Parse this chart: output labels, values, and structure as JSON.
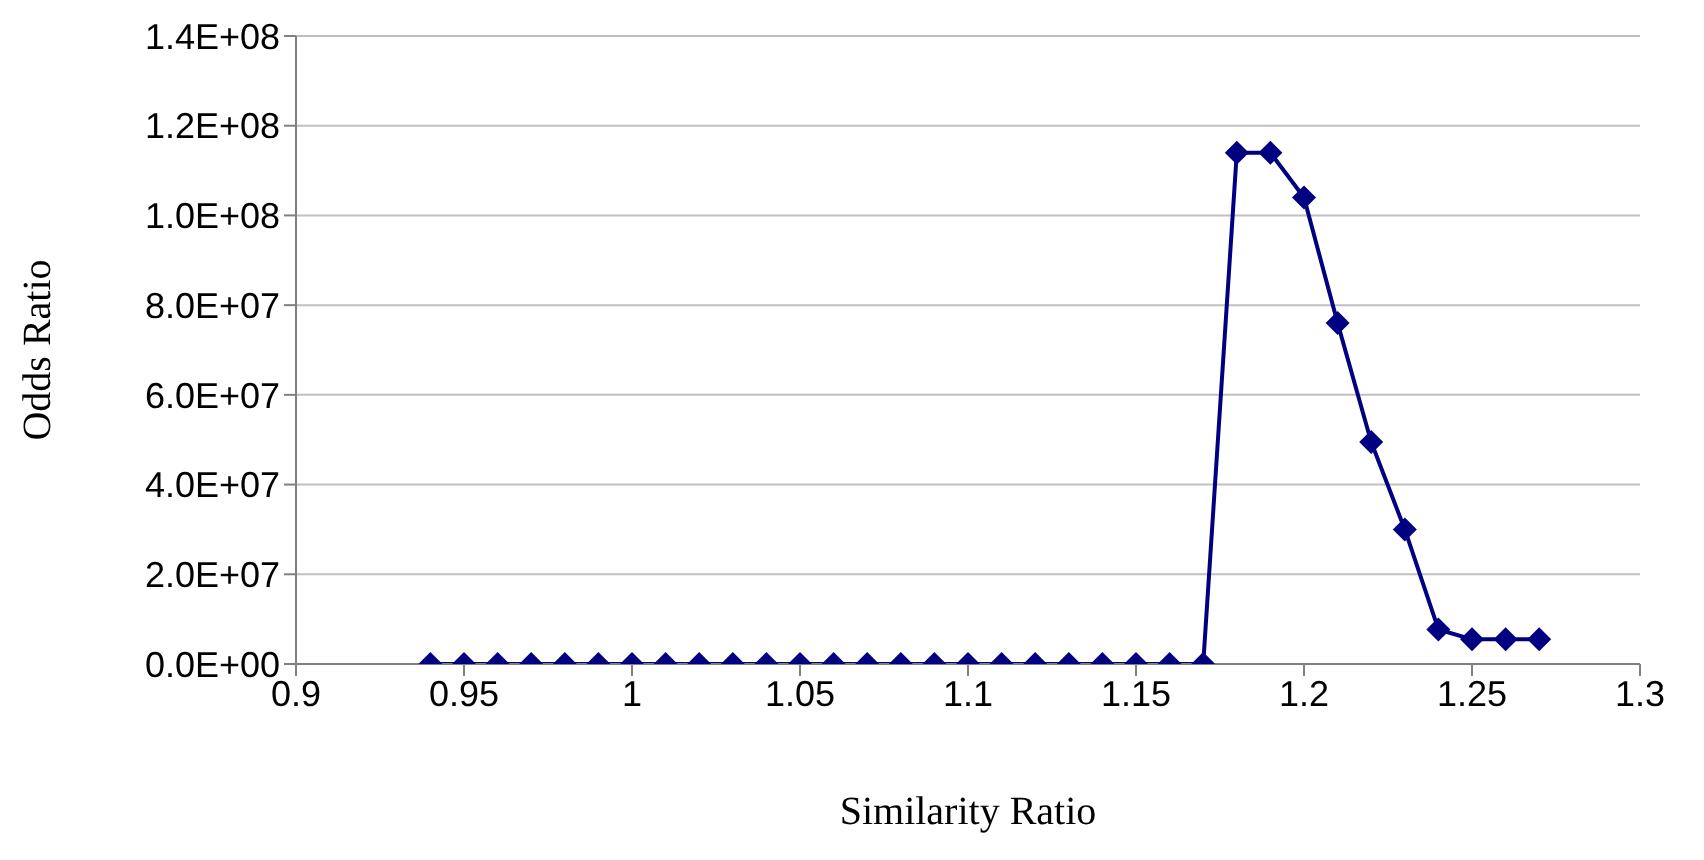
{
  "chart_data": {
    "type": "line",
    "xlabel": "Similarity Ratio",
    "ylabel": "Odds Ratio",
    "x": [
      0.94,
      0.95,
      0.96,
      0.97,
      0.98,
      0.99,
      1.0,
      1.01,
      1.02,
      1.03,
      1.04,
      1.05,
      1.06,
      1.07,
      1.08,
      1.09,
      1.1,
      1.11,
      1.12,
      1.13,
      1.14,
      1.15,
      1.16,
      1.17,
      1.18,
      1.19,
      1.2,
      1.21,
      1.22,
      1.23,
      1.24,
      1.25,
      1.26,
      1.27
    ],
    "series": [
      {
        "color": "#000080",
        "values": [
          0,
          0,
          0,
          0,
          0,
          0,
          0,
          0,
          0,
          0,
          0,
          0,
          0,
          0,
          0,
          0,
          0,
          0,
          0,
          0,
          0,
          0,
          0,
          0,
          114000000,
          114000000,
          104000000,
          76000000,
          49500000,
          30000000,
          7700000,
          5500000,
          5500000,
          5500000
        ]
      }
    ],
    "xlim": [
      0.9,
      1.3
    ],
    "xticks": [
      0.9,
      0.95,
      1,
      1.05,
      1.1,
      1.15,
      1.2,
      1.25,
      1.3
    ],
    "ylim": [
      0,
      140000000
    ],
    "yticks": [
      {
        "value": 0,
        "label": "0.0E+00"
      },
      {
        "value": 20000000,
        "label": "2.0E+07"
      },
      {
        "value": 40000000,
        "label": "4.0E+07"
      },
      {
        "value": 60000000,
        "label": "6.0E+07"
      },
      {
        "value": 80000000,
        "label": "8.0E+07"
      },
      {
        "value": 100000000,
        "label": "1.0E+08"
      },
      {
        "value": 120000000,
        "label": "1.2E+08"
      },
      {
        "value": 140000000,
        "label": "1.4E+08"
      }
    ],
    "grid": "y",
    "legend": false,
    "marker": "diamond",
    "line_style": "solid"
  }
}
